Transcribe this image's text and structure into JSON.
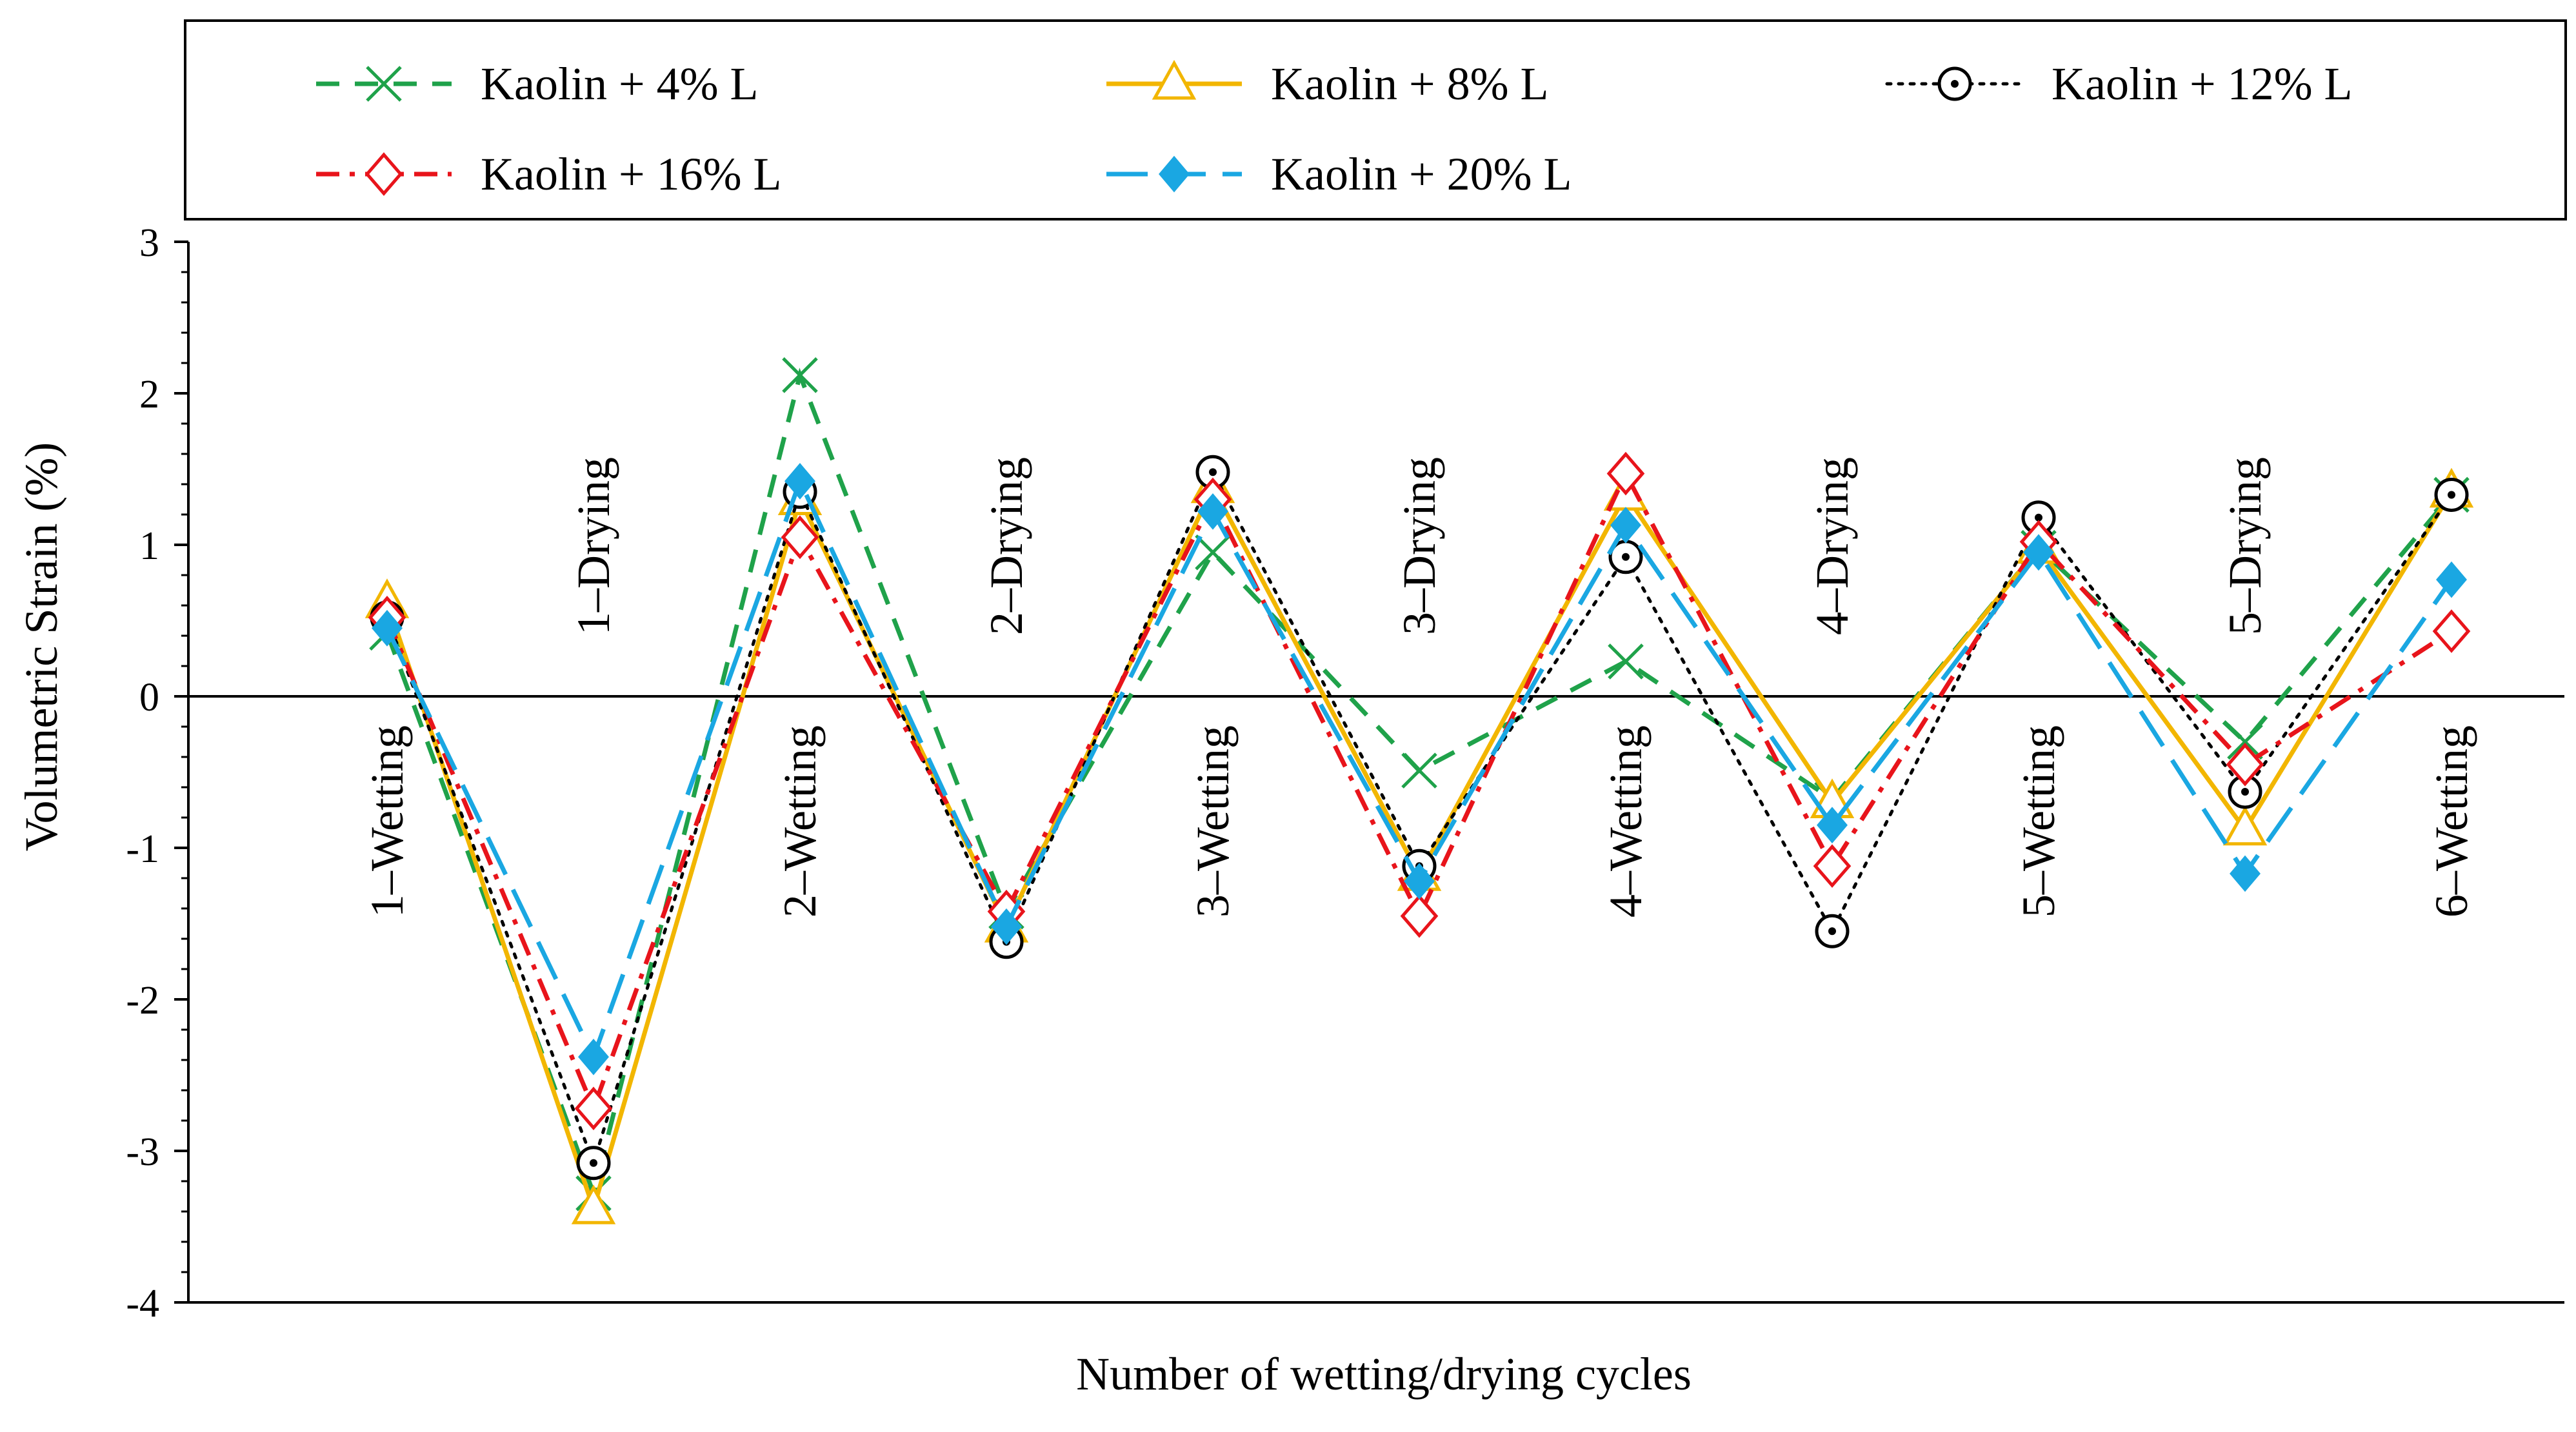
{
  "chart_data": {
    "type": "line",
    "title": "",
    "xlabel": "Number of wetting/drying cycles",
    "ylabel": "Volumetric Strain (%)",
    "ylim": [
      -4,
      3
    ],
    "yticks": [
      -4,
      -3,
      -2,
      -1,
      0,
      1,
      2,
      3
    ],
    "grid": false,
    "legend_position": "top",
    "categories": [
      "1–Wetting",
      "1–Drying",
      "2–Wetting",
      "2–Drying",
      "3–Wetting",
      "3–Drying",
      "4–Wetting",
      "4–Drying",
      "5–Wetting",
      "5–Drying",
      "6–Wetting"
    ],
    "series": [
      {
        "name": "Kaolin + 4% L",
        "color": "#1fa24a",
        "marker": "x",
        "dash": "dash",
        "values": [
          0.42,
          -3.28,
          2.12,
          -1.42,
          0.95,
          -0.49,
          0.23,
          -0.68,
          0.98,
          -0.3,
          1.33
        ]
      },
      {
        "name": "Kaolin + 8% L",
        "color": "#f2b600",
        "marker": "triangle",
        "dash": "solid",
        "values": [
          0.62,
          -3.38,
          1.3,
          -1.52,
          1.38,
          -1.18,
          1.33,
          -0.7,
          0.98,
          -0.88,
          1.35
        ]
      },
      {
        "name": "Kaolin + 12% L",
        "color": "#000000",
        "marker": "circle-dot",
        "dash": "dot",
        "values": [
          0.52,
          -3.08,
          1.35,
          -1.62,
          1.48,
          -1.12,
          0.92,
          -1.55,
          1.18,
          -0.63,
          1.33
        ]
      },
      {
        "name": "Kaolin + 16% L",
        "color": "#e8141b",
        "marker": "diamond-open",
        "dash": "dashdot",
        "values": [
          0.52,
          -2.72,
          1.05,
          -1.42,
          1.3,
          -1.45,
          1.47,
          -1.12,
          1.02,
          -0.45,
          0.43
        ]
      },
      {
        "name": "Kaolin + 20% L",
        "color": "#1aa7e2",
        "marker": "diamond-filled",
        "dash": "longdash",
        "values": [
          0.45,
          -2.38,
          1.42,
          -1.52,
          1.22,
          -1.22,
          1.13,
          -0.85,
          0.95,
          -1.17,
          0.77
        ]
      }
    ]
  }
}
